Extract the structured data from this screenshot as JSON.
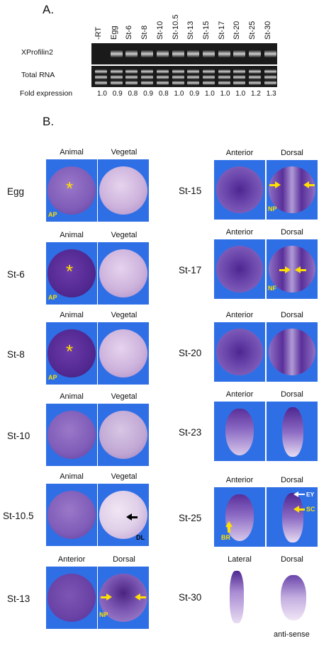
{
  "panel_a": {
    "label": "A.",
    "lanes": [
      "-RT",
      "Egg",
      "St-6",
      "St-8",
      "St-10",
      "St-10.5",
      "St-13",
      "St-15",
      "St-17",
      "St-20",
      "St-25",
      "St-30"
    ],
    "row_labels": {
      "gene": "XProfilin2",
      "rna": "Total RNA",
      "fold": "Fold expression"
    },
    "fold_values": [
      "1.0",
      "0.9",
      "0.8",
      "0.9",
      "0.8",
      "1.0",
      "0.9",
      "1.0",
      "1.0",
      "1.0",
      "1.2",
      "1.3"
    ]
  },
  "panel_b": {
    "label": "B.",
    "left": [
      {
        "stage": "Egg",
        "view1": "Animal",
        "view2": "Vegetal",
        "marks": [
          "AP"
        ]
      },
      {
        "stage": "St-6",
        "view1": "Animal",
        "view2": "Vegetal",
        "marks": [
          "AP"
        ]
      },
      {
        "stage": "St-8",
        "view1": "Animal",
        "view2": "Vegetal",
        "marks": [
          "AP"
        ]
      },
      {
        "stage": "St-10",
        "view1": "Animal",
        "view2": "Vegetal",
        "marks": []
      },
      {
        "stage": "St-10.5",
        "view1": "Animal",
        "view2": "Vegetal",
        "marks": [
          "DL"
        ]
      },
      {
        "stage": "St-13",
        "view1": "Anterior",
        "view2": "Dorsal",
        "marks": [
          "NP"
        ]
      }
    ],
    "right": [
      {
        "stage": "St-15",
        "view1": "Anterior",
        "view2": "Dorsal",
        "marks": [
          "NP"
        ]
      },
      {
        "stage": "St-17",
        "view1": "Anterior",
        "view2": "Dorsal",
        "marks": [
          "NF"
        ]
      },
      {
        "stage": "St-20",
        "view1": "Anterior",
        "view2": "Dorsal",
        "marks": []
      },
      {
        "stage": "St-23",
        "view1": "Anterior",
        "view2": "Dorsal",
        "marks": []
      },
      {
        "stage": "St-25",
        "view1": "Anterior",
        "view2": "Dorsal",
        "marks": [
          "BR",
          "EY",
          "SC"
        ]
      },
      {
        "stage": "St-30",
        "view1": "Lateral",
        "view2": "Dorsal",
        "marks": []
      }
    ],
    "caption": "anti-sense"
  },
  "colors": {
    "background_blue": "#2f6fe6",
    "marker_yellow": "#ffe000",
    "stain_purple": "#5a2a9a"
  }
}
